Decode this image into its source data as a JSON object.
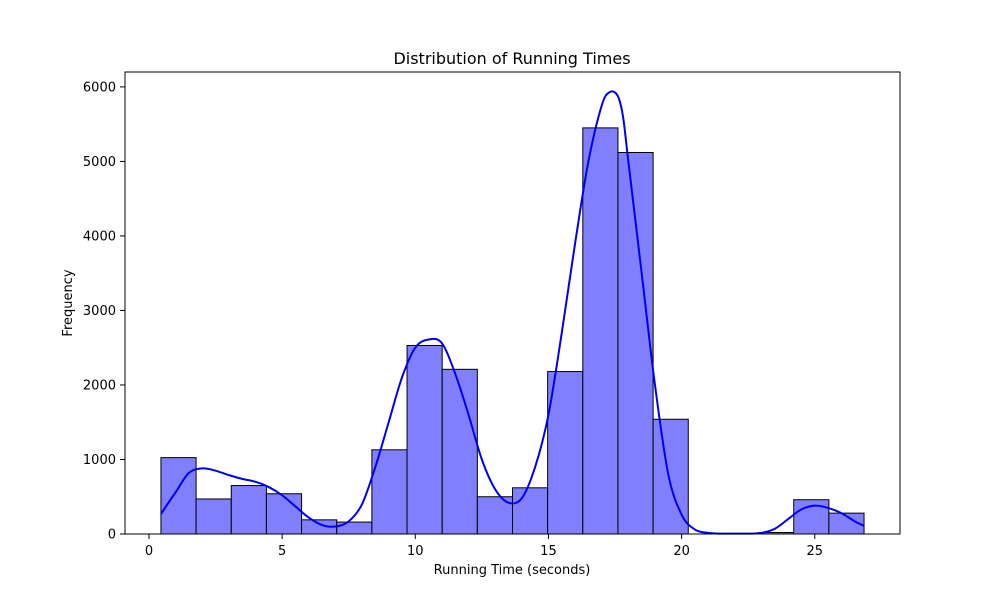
{
  "chart_data": {
    "type": "bar",
    "title": "Distribution of Running Times",
    "xlabel": "Running Time (seconds)",
    "ylabel": "Frequency",
    "xlim": [
      -0.9,
      28.2
    ],
    "ylim": [
      0,
      6200
    ],
    "xticks": [
      0,
      5,
      10,
      15,
      20,
      25
    ],
    "yticks": [
      0,
      1000,
      2000,
      3000,
      4000,
      5000,
      6000
    ],
    "grid": false,
    "legend": "none",
    "bar_color": "#8080ff",
    "bar_edge_color": "#000000",
    "kde_color": "#0000ee",
    "bins": [
      {
        "x0": 0.45,
        "x1": 1.77,
        "value": 1025
      },
      {
        "x0": 1.77,
        "x1": 3.09,
        "value": 470
      },
      {
        "x0": 3.09,
        "x1": 4.41,
        "value": 650
      },
      {
        "x0": 4.41,
        "x1": 5.73,
        "value": 540
      },
      {
        "x0": 5.73,
        "x1": 7.05,
        "value": 190
      },
      {
        "x0": 7.05,
        "x1": 8.37,
        "value": 160
      },
      {
        "x0": 8.37,
        "x1": 9.69,
        "value": 1130
      },
      {
        "x0": 9.69,
        "x1": 11.01,
        "value": 2530
      },
      {
        "x0": 11.01,
        "x1": 12.33,
        "value": 2210
      },
      {
        "x0": 12.33,
        "x1": 13.65,
        "value": 500
      },
      {
        "x0": 13.65,
        "x1": 14.97,
        "value": 620
      },
      {
        "x0": 14.97,
        "x1": 16.29,
        "value": 2180
      },
      {
        "x0": 16.29,
        "x1": 17.61,
        "value": 5450
      },
      {
        "x0": 17.61,
        "x1": 18.93,
        "value": 5120
      },
      {
        "x0": 18.93,
        "x1": 20.25,
        "value": 1540
      },
      {
        "x0": 20.25,
        "x1": 21.57,
        "value": 0
      },
      {
        "x0": 21.57,
        "x1": 22.89,
        "value": 0
      },
      {
        "x0": 22.89,
        "x1": 24.21,
        "value": 20
      },
      {
        "x0": 24.21,
        "x1": 25.53,
        "value": 460
      },
      {
        "x0": 25.53,
        "x1": 26.85,
        "value": 280
      }
    ],
    "kde": {
      "x": [
        0.45,
        1.0,
        1.5,
        2.0,
        2.5,
        3.0,
        3.5,
        4.0,
        4.5,
        5.0,
        5.5,
        6.0,
        6.5,
        7.0,
        7.5,
        8.0,
        8.5,
        9.0,
        9.5,
        10.0,
        10.5,
        11.0,
        11.5,
        12.0,
        12.5,
        13.0,
        13.5,
        14.0,
        14.5,
        15.0,
        15.5,
        16.0,
        16.5,
        17.0,
        17.3,
        17.6,
        17.8,
        18.0,
        18.5,
        19.0,
        19.5,
        20.0,
        20.5,
        21.0,
        21.5,
        22.0,
        22.5,
        23.0,
        23.5,
        24.0,
        24.5,
        25.0,
        25.5,
        26.0,
        26.5,
        26.85
      ],
      "y": [
        270,
        560,
        820,
        880,
        850,
        790,
        740,
        700,
        630,
        520,
        370,
        220,
        120,
        100,
        170,
        400,
        900,
        1500,
        2100,
        2500,
        2610,
        2560,
        2150,
        1600,
        1000,
        600,
        420,
        480,
        900,
        1600,
        2700,
        3900,
        5000,
        5750,
        5930,
        5880,
        5600,
        5000,
        3500,
        2000,
        800,
        260,
        60,
        15,
        5,
        5,
        5,
        15,
        70,
        200,
        330,
        380,
        350,
        280,
        170,
        110
      ]
    }
  }
}
